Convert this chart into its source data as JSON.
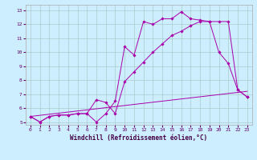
{
  "title": "",
  "xlabel": "Windchill (Refroidissement éolien,°C)",
  "bg_color": "#cceeff",
  "line_color": "#aa00aa",
  "xlim": [
    -0.5,
    23.5
  ],
  "ylim": [
    4.8,
    13.4
  ],
  "xticks": [
    0,
    1,
    2,
    3,
    4,
    5,
    6,
    7,
    8,
    9,
    10,
    11,
    12,
    13,
    14,
    15,
    16,
    17,
    18,
    19,
    20,
    21,
    22,
    23
  ],
  "yticks": [
    5,
    6,
    7,
    8,
    9,
    10,
    11,
    12,
    13
  ],
  "grid_color": "#aacccc",
  "series1_x": [
    0,
    1,
    2,
    3,
    4,
    5,
    6,
    7,
    8,
    9,
    10,
    11,
    12,
    13,
    14,
    15,
    16,
    17,
    18,
    19,
    20,
    21,
    22,
    23
  ],
  "series1_y": [
    5.4,
    5.0,
    5.4,
    5.5,
    5.5,
    5.6,
    5.6,
    5.0,
    5.6,
    6.5,
    10.4,
    9.8,
    12.2,
    12.0,
    12.4,
    12.4,
    12.9,
    12.4,
    12.3,
    12.2,
    10.0,
    9.2,
    7.3,
    6.8
  ],
  "series2_x": [
    0,
    1,
    2,
    3,
    4,
    5,
    6,
    7,
    8,
    9,
    10,
    11,
    12,
    13,
    14,
    15,
    16,
    17,
    18,
    19,
    20,
    21,
    22,
    23
  ],
  "series2_y": [
    5.4,
    5.0,
    5.4,
    5.5,
    5.5,
    5.6,
    5.6,
    6.6,
    6.4,
    5.6,
    7.9,
    8.6,
    9.3,
    10.0,
    10.6,
    11.2,
    11.5,
    11.9,
    12.2,
    12.2,
    12.2,
    12.2,
    7.3,
    6.8
  ],
  "series3_x": [
    0,
    23
  ],
  "series3_y": [
    5.4,
    7.2
  ],
  "xlabel_fontsize": 5.5,
  "tick_fontsize": 4.5
}
